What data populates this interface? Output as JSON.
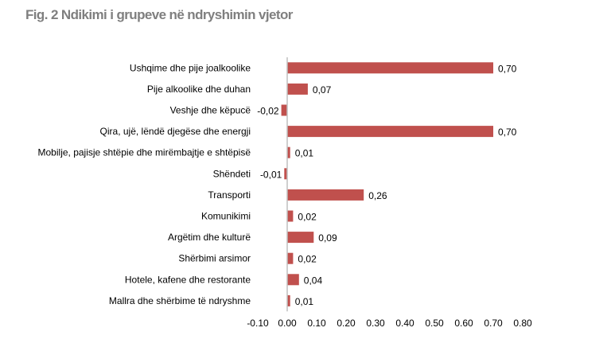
{
  "chart_data": {
    "type": "bar",
    "orientation": "horizontal",
    "title": "Fig. 2 Ndikimi i grupeve në ndryshimin vjetor",
    "xlabel": "",
    "ylabel": "",
    "xlim": [
      -0.1,
      0.8
    ],
    "grid": false,
    "legend": "none",
    "bar_color": "#C0504D",
    "x_ticks": [
      "-0.10",
      "0.00",
      "0.10",
      "0.20",
      "0.30",
      "0.40",
      "0.50",
      "0.60",
      "0.70",
      "0.80"
    ],
    "x_tick_values": [
      -0.1,
      0,
      0.1,
      0.2,
      0.3,
      0.4,
      0.5,
      0.6,
      0.7,
      0.8
    ],
    "categories": [
      "Ushqime dhe pije joalkoolike",
      "Pije alkoolike dhe duhan",
      "Veshje dhe këpucë",
      "Qira, ujë, lëndë djegëse dhe energji",
      "Mobilje, pajisje shtëpie dhe mirëmbajtje e shtëpisë",
      "Shëndeti",
      "Transporti",
      "Komunikimi",
      "Argëtim dhe kulturë",
      "Shërbimi arsimor",
      "Hotele, kafene dhe restorante",
      "Mallra dhe shërbime të ndryshme"
    ],
    "values": [
      0.7,
      0.07,
      -0.02,
      0.7,
      0.01,
      -0.01,
      0.26,
      0.02,
      0.09,
      0.02,
      0.04,
      0.01
    ],
    "data_labels": [
      "0,70",
      "0,07",
      "-0,02",
      "0,70",
      "0,01",
      "-0,01",
      "0,26",
      "0,02",
      "0,09",
      "0,02",
      "0,04",
      "0,01"
    ]
  }
}
